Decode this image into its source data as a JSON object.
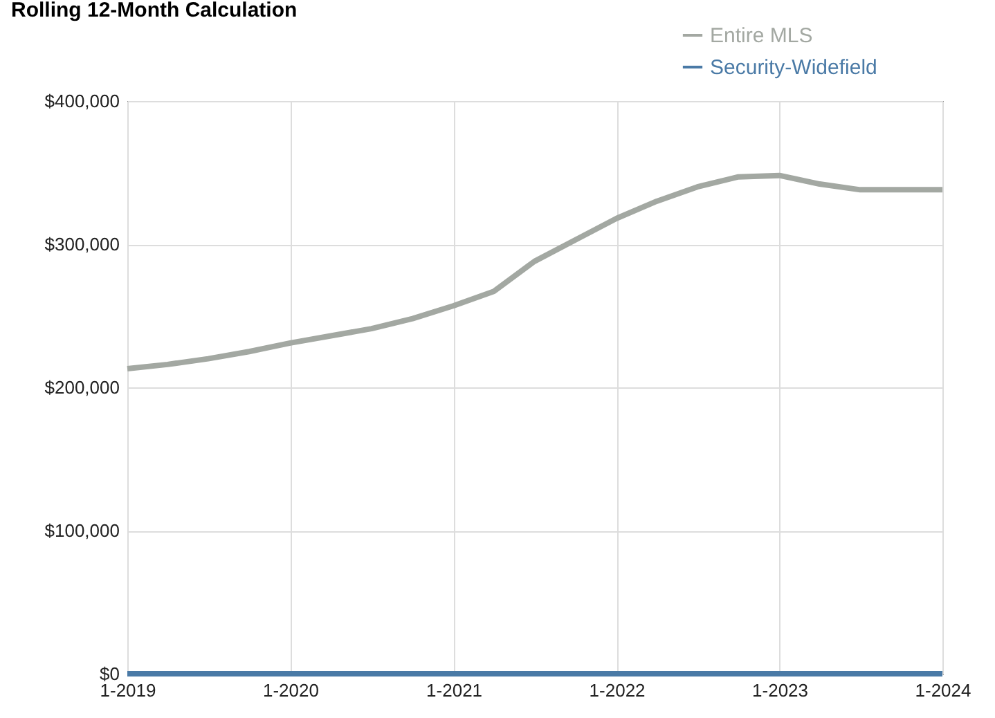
{
  "chart_data": {
    "type": "line",
    "title": "Rolling 12-Month Calculation",
    "x": [
      "2019-01",
      "2019-04",
      "2019-07",
      "2019-10",
      "2020-01",
      "2020-04",
      "2020-07",
      "2020-10",
      "2021-01",
      "2021-04",
      "2021-07",
      "2021-10",
      "2022-01",
      "2022-04",
      "2022-07",
      "2022-10",
      "2023-01",
      "2023-04",
      "2023-07",
      "2023-10",
      "2024-01"
    ],
    "series": [
      {
        "name": "Entire MLS",
        "color": "#a3a8a2",
        "values": [
          213000,
          216000,
          220000,
          225000,
          231000,
          236000,
          241000,
          248000,
          257000,
          267000,
          288000,
          303000,
          318000,
          330000,
          340000,
          347000,
          348000,
          342000,
          338000,
          338000,
          338000
        ]
      },
      {
        "name": "Security-Widefield",
        "color": "#4a7aa6",
        "values": [
          0,
          0,
          0,
          0,
          0,
          0,
          0,
          0,
          0,
          0,
          0,
          0,
          0,
          0,
          0,
          0,
          0,
          0,
          0,
          0,
          0
        ]
      }
    ],
    "xlim": [
      "2019-01",
      "2024-01"
    ],
    "xticks": [
      {
        "value": "2019-01",
        "label": "1-2019"
      },
      {
        "value": "2020-01",
        "label": "1-2020"
      },
      {
        "value": "2021-01",
        "label": "1-2021"
      },
      {
        "value": "2022-01",
        "label": "1-2022"
      },
      {
        "value": "2023-01",
        "label": "1-2023"
      },
      {
        "value": "2024-01",
        "label": "1-2024"
      }
    ],
    "ylim": [
      0,
      400000
    ],
    "yticks": [
      {
        "value": 0,
        "label": "$0"
      },
      {
        "value": 100000,
        "label": "$100,000"
      },
      {
        "value": 200000,
        "label": "$200,000"
      },
      {
        "value": 300000,
        "label": "$300,000"
      },
      {
        "value": 400000,
        "label": "$400,000"
      }
    ],
    "grid": true,
    "legend": "top right",
    "line_style": "solid",
    "marker": "none"
  }
}
